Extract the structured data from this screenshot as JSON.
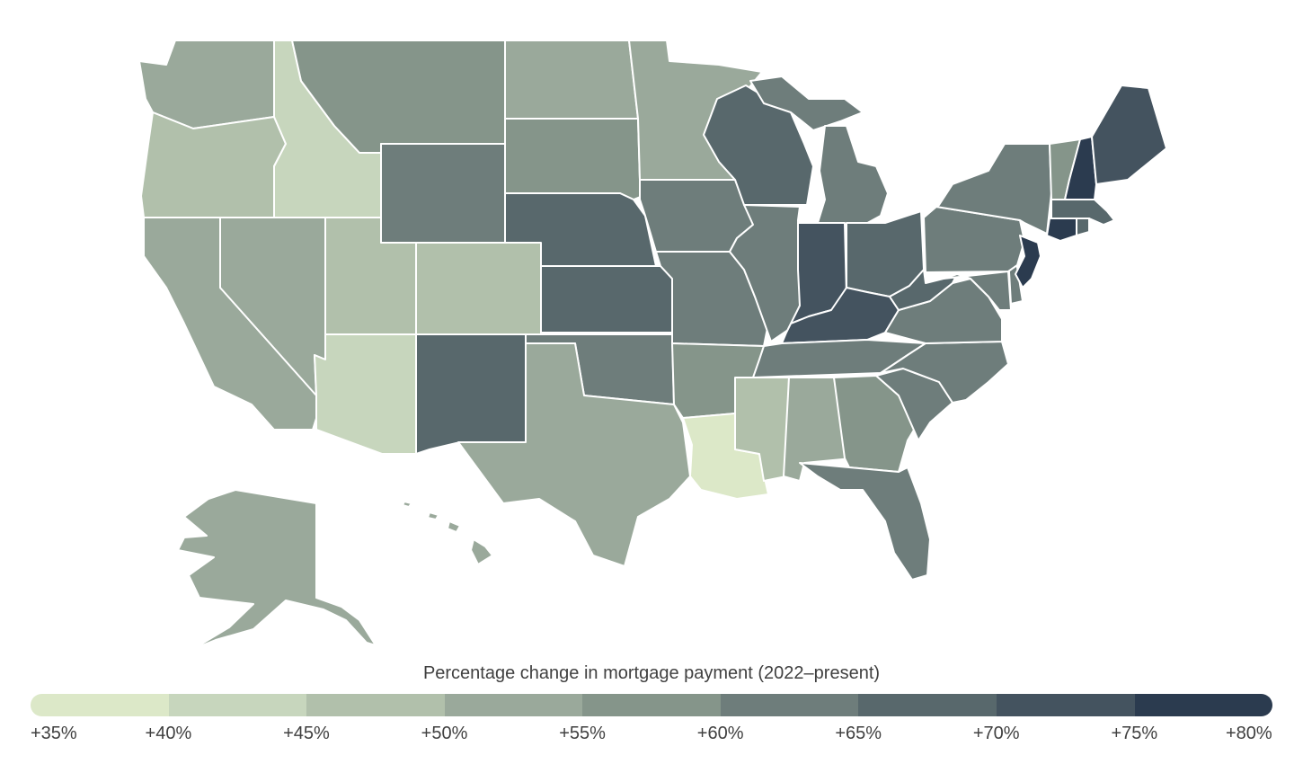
{
  "legend": {
    "title": "Percentage change in mortgage payment (2022–present)",
    "ticks": [
      "+35%",
      "+40%",
      "+45%",
      "+50%",
      "+55%",
      "+60%",
      "+65%",
      "+70%",
      "+75%",
      "+80%"
    ],
    "colors": [
      "#dce8c8",
      "#c7d6bd",
      "#b1c0ab",
      "#9aa99b",
      "#85958a",
      "#6e7d7b",
      "#58686c",
      "#44535f",
      "#2b3b4f"
    ]
  },
  "states": [
    {
      "name": "Washington",
      "color": "#9aa99b"
    },
    {
      "name": "Oregon",
      "color": "#b1c0ab"
    },
    {
      "name": "California",
      "color": "#9aa99b"
    },
    {
      "name": "Nevada",
      "color": "#9aa99b"
    },
    {
      "name": "Idaho",
      "color": "#c7d6bd"
    },
    {
      "name": "Montana",
      "color": "#85958a"
    },
    {
      "name": "Wyoming",
      "color": "#6e7d7b"
    },
    {
      "name": "Utah",
      "color": "#b1c0ab"
    },
    {
      "name": "Colorado",
      "color": "#b1c0ab"
    },
    {
      "name": "Arizona",
      "color": "#c7d6bd"
    },
    {
      "name": "New Mexico",
      "color": "#58686c"
    },
    {
      "name": "North Dakota",
      "color": "#9aa99b"
    },
    {
      "name": "South Dakota",
      "color": "#85958a"
    },
    {
      "name": "Nebraska",
      "color": "#58686c"
    },
    {
      "name": "Kansas",
      "color": "#58686c"
    },
    {
      "name": "Oklahoma",
      "color": "#6e7d7b"
    },
    {
      "name": "Texas",
      "color": "#9aa99b"
    },
    {
      "name": "Minnesota",
      "color": "#9aa99b"
    },
    {
      "name": "Iowa",
      "color": "#6e7d7b"
    },
    {
      "name": "Missouri",
      "color": "#6e7d7b"
    },
    {
      "name": "Arkansas",
      "color": "#85958a"
    },
    {
      "name": "Louisiana",
      "color": "#dce8c8"
    },
    {
      "name": "Wisconsin",
      "color": "#58686c"
    },
    {
      "name": "Illinois",
      "color": "#6e7d7b"
    },
    {
      "name": "Michigan",
      "color": "#6e7d7b"
    },
    {
      "name": "Indiana",
      "color": "#44535f"
    },
    {
      "name": "Ohio",
      "color": "#58686c"
    },
    {
      "name": "Kentucky",
      "color": "#44535f"
    },
    {
      "name": "Tennessee",
      "color": "#6e7d7b"
    },
    {
      "name": "Mississippi",
      "color": "#b1c0ab"
    },
    {
      "name": "Alabama",
      "color": "#9aa99b"
    },
    {
      "name": "Georgia",
      "color": "#85958a"
    },
    {
      "name": "Florida",
      "color": "#6e7d7b"
    },
    {
      "name": "South Carolina",
      "color": "#6e7d7b"
    },
    {
      "name": "North Carolina",
      "color": "#6e7d7b"
    },
    {
      "name": "Virginia",
      "color": "#6e7d7b"
    },
    {
      "name": "West Virginia",
      "color": "#58686c"
    },
    {
      "name": "Pennsylvania",
      "color": "#6e7d7b"
    },
    {
      "name": "New York",
      "color": "#6e7d7b"
    },
    {
      "name": "Vermont",
      "color": "#85958a"
    },
    {
      "name": "New Hampshire",
      "color": "#2b3b4f"
    },
    {
      "name": "Maine",
      "color": "#44535f"
    },
    {
      "name": "Massachusetts",
      "color": "#58686c"
    },
    {
      "name": "Rhode Island",
      "color": "#58686c"
    },
    {
      "name": "Connecticut",
      "color": "#2b3b4f"
    },
    {
      "name": "New Jersey",
      "color": "#2b3b4f"
    },
    {
      "name": "Delaware",
      "color": "#6e7d7b"
    },
    {
      "name": "Maryland",
      "color": "#6e7d7b"
    },
    {
      "name": "Alaska",
      "color": "#9aa99b"
    },
    {
      "name": "Hawaii",
      "color": "#9aa99b"
    }
  ]
}
